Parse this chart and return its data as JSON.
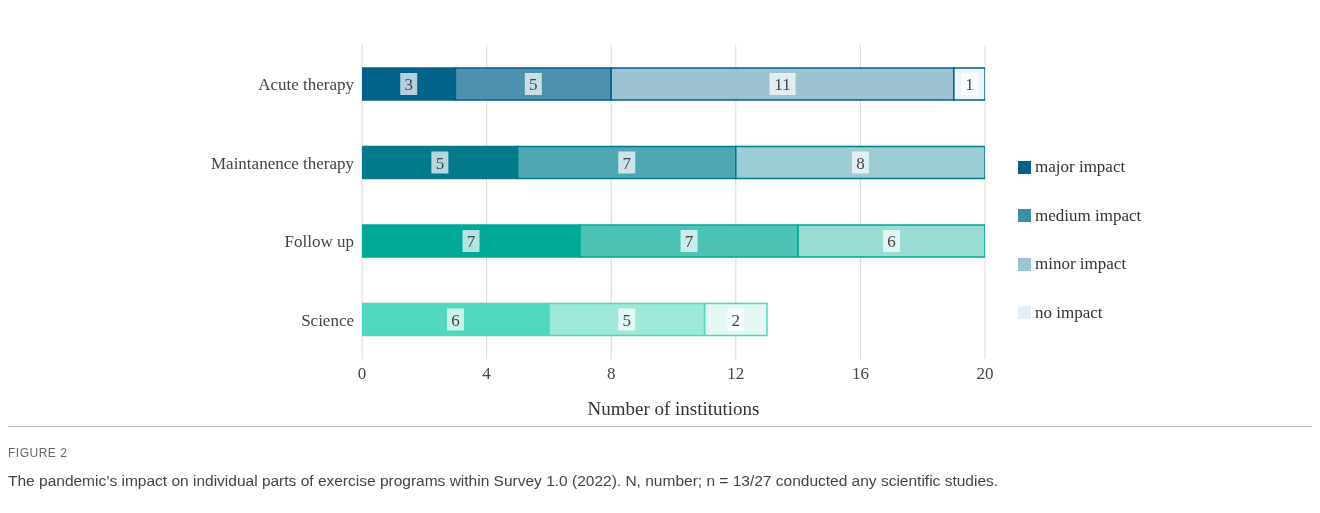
{
  "chart_data": {
    "type": "bar",
    "orientation": "horizontal",
    "stacked": true,
    "data_labels": true,
    "grid": "x",
    "legend": "right",
    "xlabel": "Number of institutions",
    "categories": [
      "Acute therapy",
      "Maintanence therapy",
      "Follow up",
      "Science"
    ],
    "xlim": [
      0,
      20
    ],
    "xticks": [
      0,
      4,
      8,
      12,
      16,
      20
    ],
    "series": [
      {
        "name": "major impact",
        "color": "#03628a",
        "colors": [
          "#03628a",
          "#037a8c",
          "#00a896",
          "#4dd6bd"
        ],
        "values": [
          3,
          5,
          7,
          null
        ]
      },
      {
        "name": "medium impact",
        "color": "#3f8ea8",
        "colors": [
          "#4d90b0",
          "#4ea8b3",
          "#4cc3b5",
          "#4fd8be"
        ],
        "values": [
          5,
          7,
          7,
          6
        ]
      },
      {
        "name": "minor impact",
        "color": "#9cc4d3",
        "colors": [
          "#9bc1d3",
          "#9ccdd5",
          "#99dcd3",
          "#9ee8d9"
        ],
        "values": [
          11,
          8,
          6,
          5
        ]
      },
      {
        "name": "no impact",
        "color": "#e2f0f4",
        "colors": [
          "#eef5f8",
          "#eef7f8",
          "#e6f7f4",
          "#e3f7f3"
        ],
        "values": [
          1,
          null,
          null,
          2
        ]
      }
    ],
    "annotations": [
      "FIGURE 2",
      "The pandemic’s impact on individual parts of exercise programs within Survey 1.0 (2022). N, number; n = 13/27 conducted any scientific studies."
    ]
  }
}
